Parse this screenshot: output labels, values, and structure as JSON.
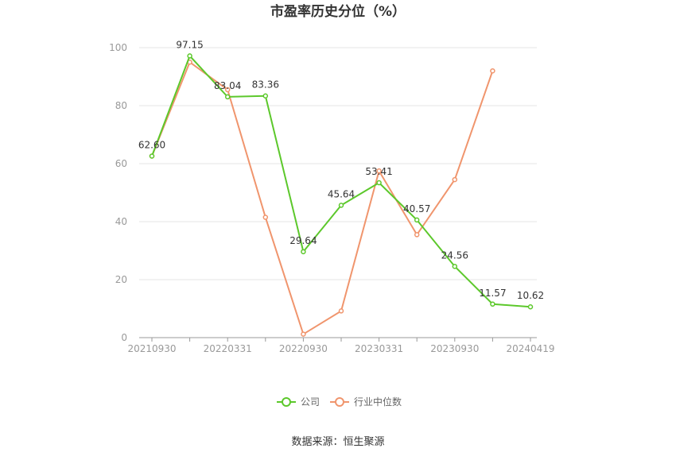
{
  "chart_data": {
    "type": "line",
    "title": "市盈率历史分位（%）",
    "xlabel": "",
    "ylabel": "",
    "ylim": [
      0,
      100
    ],
    "yticks": [
      0,
      20,
      40,
      60,
      80,
      100
    ],
    "x": [
      "20210930",
      "20211231",
      "20220331",
      "20220630",
      "20220930",
      "20221230",
      "20230331",
      "20230630",
      "20230930",
      "20231229",
      "20240419"
    ],
    "x_tick_labels": [
      "20210930",
      "20220331",
      "20220930",
      "20230331",
      "20230930",
      "20240419"
    ],
    "series": [
      {
        "name": "公司",
        "color": "#5cc82b",
        "values": [
          62.6,
          97.15,
          83.04,
          83.36,
          29.64,
          45.64,
          53.41,
          40.57,
          24.56,
          11.57,
          10.62
        ],
        "labels": [
          "62.60",
          "97.15",
          "83.04",
          "83.36",
          "29.64",
          "45.64",
          "53.41",
          "40.57",
          "24.56",
          "11.57",
          "10.62"
        ]
      },
      {
        "name": "行业中位数",
        "color": "#f0956d",
        "values": [
          62.6,
          95.0,
          85.5,
          41.5,
          1.2,
          9.2,
          57.5,
          35.5,
          54.5,
          92.0,
          null
        ]
      }
    ],
    "legend_position": "bottom",
    "grid": true
  },
  "source_text": "数据来源：恒生聚源"
}
